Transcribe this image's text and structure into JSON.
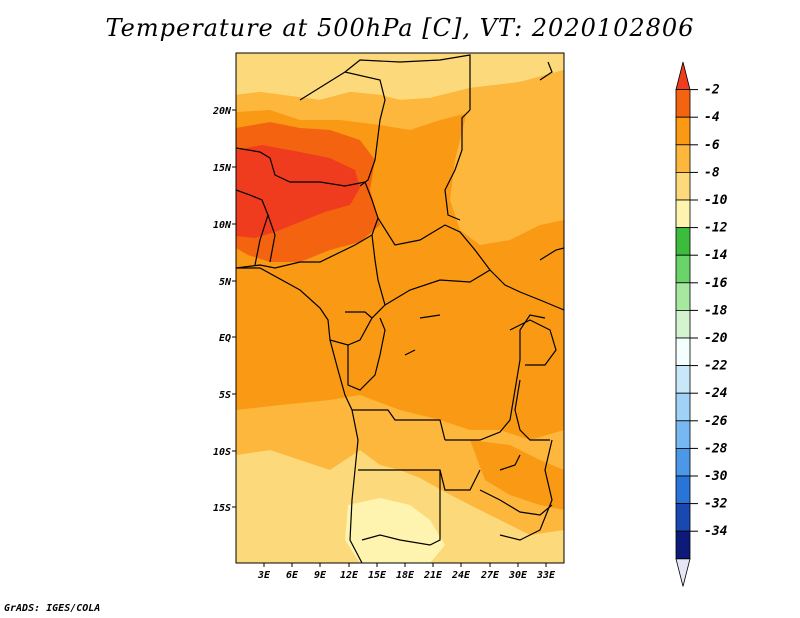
{
  "title": "Temperature at 500hPa [C], VT: 2020102806",
  "credit": "GrADS: IGES/COLA",
  "map": {
    "lat_labels": [
      "20N",
      "15N",
      "10N",
      "5N",
      "EQ",
      "5S",
      "10S",
      "15S"
    ],
    "lon_labels": [
      "3E",
      "6E",
      "9E",
      "12E",
      "15E",
      "18E",
      "21E",
      "24E",
      "27E",
      "30E",
      "33E"
    ]
  },
  "colorbar": {
    "labels": [
      "-2",
      "-4",
      "-6",
      "-8",
      "-10",
      "-12",
      "-14",
      "-16",
      "-18",
      "-20",
      "-22",
      "-24",
      "-26",
      "-28",
      "-30",
      "-32",
      "-34"
    ],
    "colors": [
      "#f03c1e",
      "#f46410",
      "#fa9a14",
      "#fcb73c",
      "#fcd97a",
      "#fef4b0",
      "#3cbc3c",
      "#6ad46a",
      "#a6e8a0",
      "#d4f4d0",
      "#f4fefe",
      "#c8e8fa",
      "#a0d2f8",
      "#78b8f2",
      "#4c98e6",
      "#2874d8",
      "#1848b0",
      "#0e1a7a",
      "#e6e6f6"
    ],
    "data_colors": {
      "warm_core": "#f03c1e",
      "warm": "#f46410",
      "mid": "#fa9a14",
      "light": "#fcb73c",
      "pale": "#fcd97a",
      "palest": "#fef4b0"
    }
  }
}
